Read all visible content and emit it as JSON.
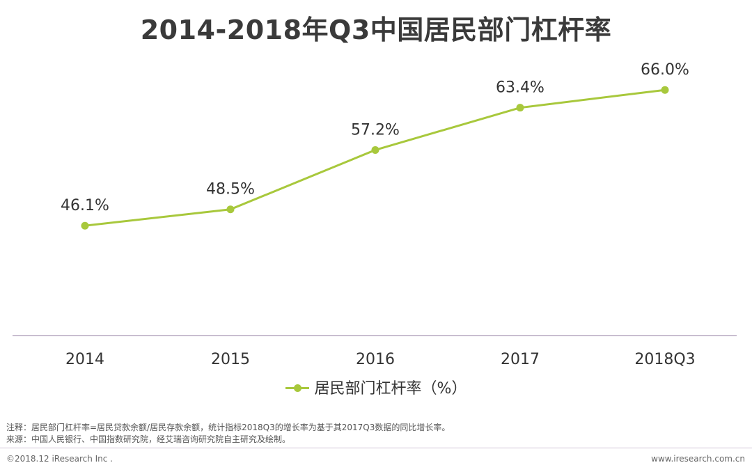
{
  "chart_data": {
    "type": "line",
    "title": "2014-2018年Q3中国居民部门杠杆率",
    "categories": [
      "2014",
      "2015",
      "2016",
      "2017",
      "2018Q3"
    ],
    "series": [
      {
        "name": "居民部门杠杆率（%）",
        "values": [
          46.1,
          48.5,
          57.2,
          63.4,
          66.0
        ]
      }
    ],
    "value_labels": [
      "46.1%",
      "48.5%",
      "57.2%",
      "63.4%",
      "66.0%"
    ],
    "xlabel": "",
    "ylabel": "",
    "ylim": [
      30,
      70
    ],
    "grid": false,
    "legend": "bottom-center",
    "line_color": "#a8c83c",
    "axis_color": "#b7a9c1"
  },
  "legend": {
    "label": "居民部门杠杆率（%）"
  },
  "notes": {
    "note": "注释：居民部门杠杆率=居民贷款余额/居民存款余额，统计指标2018Q3的增长率为基于其2017Q3数据的同比增长率。",
    "source": "来源：中国人民银行、中国指数研究院，经艾瑞咨询研究院自主研究及绘制。"
  },
  "footer": {
    "copyright": "©2018.12 iResearch Inc .",
    "website": "www.iresearch.com.cn"
  }
}
